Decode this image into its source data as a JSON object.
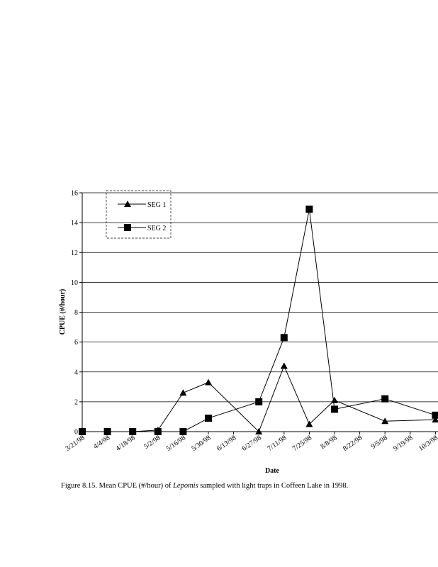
{
  "chart_data": {
    "type": "line",
    "x_label": "Date",
    "y_label": "CPUE (#/hour)",
    "categories": [
      "3/21/98",
      "4/4/98",
      "4/18/98",
      "5/2/98",
      "5/16/98",
      "5/30/98",
      "6/13/98",
      "6/27/98",
      "7/11/98",
      "7/25/98",
      "8/8/98",
      "8/22/98",
      "9/5/98",
      "9/19/98",
      "10/3/98"
    ],
    "series": [
      {
        "name": "SEG 1",
        "marker": "triangle",
        "color": "#000000",
        "x": [
          "3/21/98",
          "4/4/98",
          "4/18/98",
          "5/2/98",
          "5/16/98",
          "5/30/98",
          "6/27/98",
          "7/11/98",
          "7/25/98",
          "8/8/98",
          "9/5/98",
          "10/3/98"
        ],
        "values": [
          0,
          0,
          0,
          0.1,
          2.6,
          3.3,
          0,
          4.4,
          0.5,
          2.1,
          0.7,
          0.8
        ]
      },
      {
        "name": "SEG 2",
        "marker": "square",
        "color": "#000000",
        "x": [
          "3/21/98",
          "4/4/98",
          "4/18/98",
          "5/2/98",
          "5/16/98",
          "5/30/98",
          "6/27/98",
          "7/11/98",
          "7/25/98",
          "8/8/98",
          "9/5/98",
          "10/3/98"
        ],
        "values": [
          0,
          0,
          0,
          0,
          0,
          0.9,
          2.0,
          6.3,
          14.9,
          1.5,
          2.2,
          1.1
        ]
      }
    ],
    "ylim": [
      0,
      16
    ],
    "yticks": [
      0,
      2,
      4,
      6,
      8,
      10,
      12,
      14,
      16
    ],
    "grid": true,
    "legend": "upper left"
  },
  "caption": {
    "prefix": "Figure 8.15.  Mean CPUE (#/hour) of ",
    "italic": "Lepomis",
    "suffix": " sampled with light traps in Coffeen Lake in 1998."
  }
}
